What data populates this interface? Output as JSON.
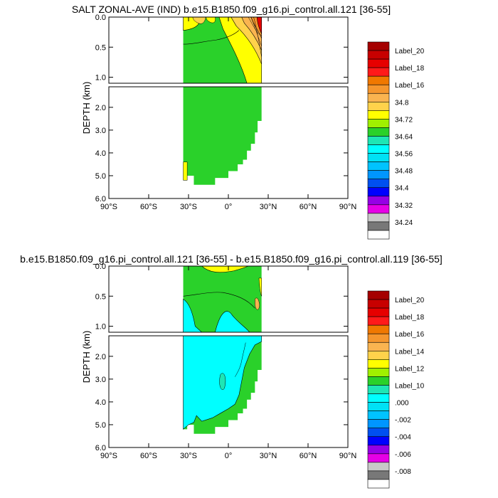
{
  "panels": [
    {
      "title": "SALT ZONAL-AVE (IND) b.e15.B1850.f09_g16.pi_control.all.121 [36-55]",
      "ylabel": "DEPTH (km)",
      "upper_yticks": [
        "0.0",
        "0.5",
        "1.0"
      ],
      "lower_yticks": [
        "2.0",
        "3.0",
        "4.0",
        "5.0",
        "6.0"
      ],
      "xticks": [
        "90°S",
        "60°S",
        "30°S",
        "0°",
        "30°N",
        "60°N",
        "90°N"
      ],
      "colorbar_labels": [
        "Label_20",
        "Label_18",
        "Label_16",
        "34.8",
        "34.72",
        "34.64",
        "34.56",
        "34.48",
        "34.4",
        "34.32",
        "34.24"
      ]
    },
    {
      "title": "b.e15.B1850.f09_g16.pi_control.all.121 [36-55] - b.e15.B1850.f09_g16.pi_control.all.119 [36-55]",
      "ylabel": "DEPTH (km)",
      "upper_yticks": [
        "0.0",
        "0.5",
        "1.0"
      ],
      "lower_yticks": [
        "2.0",
        "3.0",
        "4.0",
        "5.0",
        "6.0"
      ],
      "xticks": [
        "90°S",
        "60°S",
        "30°S",
        "0°",
        "30°N",
        "60°N",
        "90°N"
      ],
      "colorbar_labels": [
        "Label_20",
        "Label_18",
        "Label_16",
        "Label_14",
        "Label_12",
        "Label_10",
        ".000",
        "-.002",
        "-.004",
        "-.006",
        "-.008"
      ]
    }
  ],
  "colorbar_colors": [
    "#a50000",
    "#c80000",
    "#e60000",
    "#ff1a1a",
    "#f07800",
    "#f5962d",
    "#fab450",
    "#ffd24b",
    "#ffff00",
    "#a0f000",
    "#2ad12a",
    "#1ee6b4",
    "#00ffff",
    "#00e1f5",
    "#00c3ff",
    "#0096ff",
    "#0050f0",
    "#0000ff",
    "#9600e6",
    "#e600e6",
    "#c8c8c8",
    "#787878",
    "#ffffff"
  ],
  "chart_data": [
    {
      "type": "heatmap",
      "title": "SALT ZONAL-AVE (IND) b.e15.B1850.f09_g16.pi_control.all.121 [36-55]",
      "ylabel": "DEPTH (km)",
      "x_range": [
        -90,
        90
      ],
      "y_range_km": [
        6.0,
        0.0
      ],
      "y_break_km": 1.1,
      "data_extent_lat": [
        -34,
        25
      ],
      "regions": [
        {
          "level": "34.64-34.72",
          "color": "#2ad12a",
          "description": "bulk of deep water"
        },
        {
          "level": "34.72-34.8",
          "color": "#ffff00",
          "description": "upper ocean 0-1 km, north of ~0°"
        },
        {
          "level": ">34.8",
          "color": "#fab450",
          "description": "near-surface, 10°N-25°N"
        },
        {
          "level": "max",
          "color": "#e60000",
          "description": "surface near 25°N"
        }
      ],
      "colorbar_labels": [
        "Label_20",
        "Label_18",
        "Label_16",
        "34.8",
        "34.72",
        "34.64",
        "34.56",
        "34.48",
        "34.4",
        "34.32",
        "34.24"
      ]
    },
    {
      "type": "heatmap",
      "title": "b.e15.B1850.f09_g16.pi_control.all.121 [36-55] - b.e15.B1850.f09_g16.pi_control.all.119 [36-55]",
      "ylabel": "DEPTH (km)",
      "x_range": [
        -90,
        90
      ],
      "y_range_km": [
        6.0,
        0.0
      ],
      "y_break_km": 1.1,
      "data_extent_lat": [
        -34,
        25
      ],
      "regions": [
        {
          "level": "0.000-0.002",
          "color": "#00ffff",
          "description": "deep water below ~0.6 km"
        },
        {
          "level": "Label_10",
          "color": "#1ee6b4",
          "description": "mid-depth band"
        },
        {
          "level": "Label_12",
          "color": "#2ad12a",
          "description": "upper ocean"
        },
        {
          "level": "Label_14",
          "color": "#ffff00",
          "description": "near-surface patches"
        }
      ],
      "colorbar_labels": [
        "Label_20",
        "Label_18",
        "Label_16",
        "Label_14",
        "Label_12",
        "Label_10",
        ".000",
        "-.002",
        "-.004",
        "-.006",
        "-.008"
      ]
    }
  ]
}
